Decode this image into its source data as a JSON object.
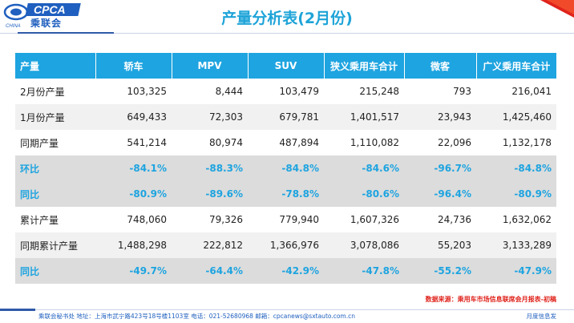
{
  "logo": {
    "text": "CPCA",
    "cn": "乘联会",
    "sub": "CHINA"
  },
  "title": "产量分析表(2月份)",
  "table": {
    "headers": [
      "产量",
      "轿车",
      "MPV",
      "SUV",
      "狭义乘用车合计",
      "微客",
      "广义乘用车合计"
    ],
    "rows": [
      {
        "type": "odd",
        "cells": [
          "2月份产量",
          "103,325",
          "8,444",
          "103,479",
          "215,248",
          "793",
          "216,041"
        ]
      },
      {
        "type": "even",
        "cells": [
          "1月份产量",
          "649,433",
          "72,303",
          "679,781",
          "1,401,517",
          "23,943",
          "1,425,460"
        ]
      },
      {
        "type": "odd",
        "cells": [
          "同期产量",
          "541,214",
          "80,974",
          "487,894",
          "1,110,082",
          "22,096",
          "1,132,178"
        ]
      },
      {
        "type": "pct",
        "cells": [
          "环比",
          "-84.1%",
          "-88.3%",
          "-84.8%",
          "-84.6%",
          "-96.7%",
          "-84.8%"
        ]
      },
      {
        "type": "pct",
        "cells": [
          "同比",
          "-80.9%",
          "-89.6%",
          "-78.8%",
          "-80.6%",
          "-96.4%",
          "-80.9%"
        ]
      },
      {
        "type": "odd",
        "cells": [
          "累计产量",
          "748,060",
          "79,326",
          "779,940",
          "1,607,326",
          "24,736",
          "1,632,062"
        ]
      },
      {
        "type": "even",
        "cells": [
          "同期累计产量",
          "1,488,298",
          "222,812",
          "1,366,976",
          "3,078,086",
          "55,203",
          "3,133,289"
        ]
      },
      {
        "type": "pct",
        "cells": [
          "同比",
          "-49.7%",
          "-64.4%",
          "-42.9%",
          "-47.8%",
          "-55.2%",
          "-47.9%"
        ]
      }
    ]
  },
  "source": "数据来源：乘用车市场信息联席会月报表-初稿",
  "footer": {
    "info": "乘联会秘书处   地址：上海市武宁路423号18号楼1103室   电话：021-52680968   邮箱：cpcanews@sxtauto.com.cn",
    "right": "月度信息发"
  },
  "colors": {
    "accent": "#1ea4e0",
    "brand": "#2f5aa8",
    "source": "#e0231c"
  }
}
